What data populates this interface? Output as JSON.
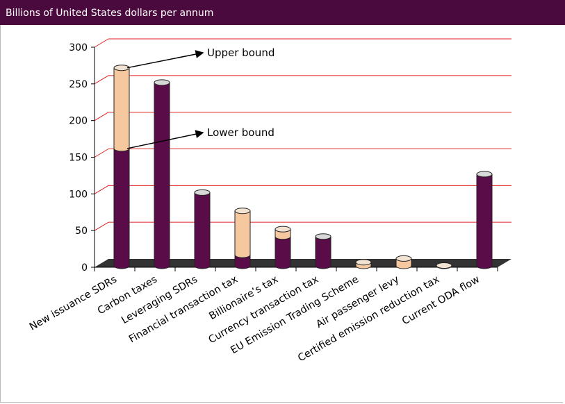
{
  "header": {
    "title": "Billions of United States dollars per annum"
  },
  "colors": {
    "header_bg": "#4b0a3d",
    "lower": "#5a0c49",
    "upper": "#f6c8a0",
    "floor": "#333333",
    "gridline": "#e02020"
  },
  "chart_data": {
    "type": "bar",
    "title": "",
    "ylabel": "Billions of United States dollars per annum",
    "ylim": [
      0,
      300
    ],
    "yticks": [
      0,
      50,
      100,
      150,
      200,
      250,
      300
    ],
    "grid": true,
    "categories": [
      "New issuance SDRs",
      "Carbon taxes",
      "Leveraging SDRs",
      "Financial transaction tax",
      "Billionaire’s tax",
      "Currency transaction tax",
      "EU Emission Trading Scheme",
      "Air passenger levy",
      "Certified emission reduction tax",
      "Current ODA flow"
    ],
    "series": [
      {
        "name": "Lower bound",
        "values": [
          160,
          250,
          100,
          15,
          40,
          40,
          0,
          0,
          0,
          125
        ]
      },
      {
        "name": "Upper bound",
        "values": [
          270,
          250,
          100,
          75,
          50,
          40,
          5,
          10,
          0.5,
          125
        ]
      }
    ],
    "annotations": [
      {
        "text": "Upper bound"
      },
      {
        "text": "Lower bound"
      }
    ]
  }
}
